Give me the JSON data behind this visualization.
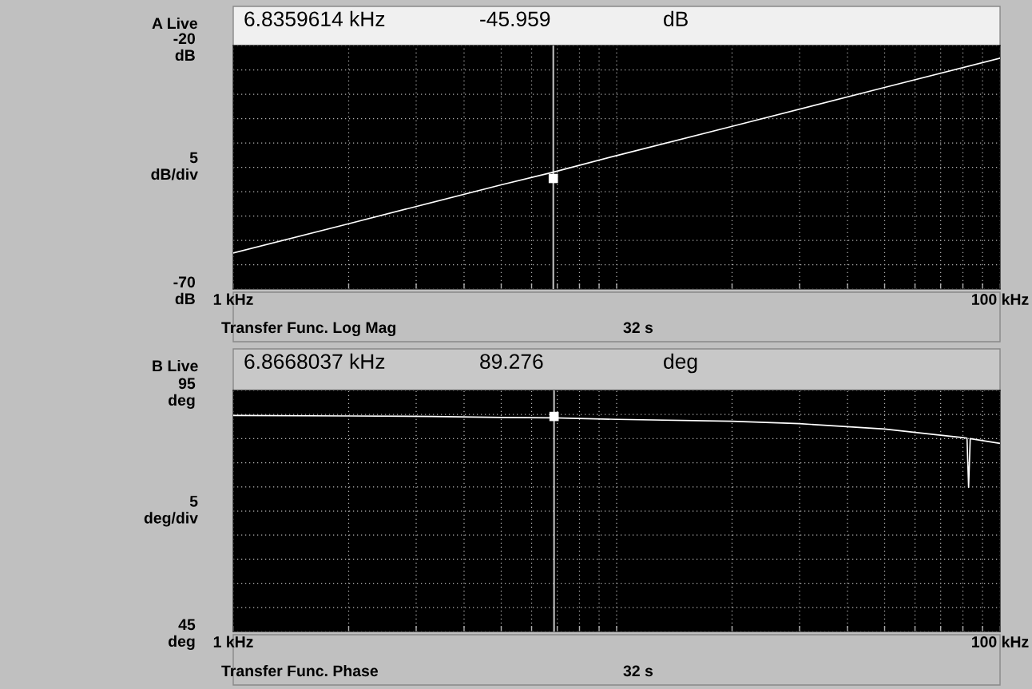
{
  "chart_data": [
    {
      "type": "line",
      "title": "A Live",
      "ylabel": "5\ndB/div",
      "xlim": [
        1,
        100
      ],
      "ylim": [
        -70,
        -20
      ],
      "log": "x",
      "grid": true,
      "marker": "none",
      "line_style": "solid",
      "xticks": [
        {
          "value": 1,
          "label": "1 kHz"
        },
        {
          "value": 2,
          "label": null
        },
        {
          "value": 3,
          "label": null
        },
        {
          "value": 4,
          "label": null
        },
        {
          "value": 5,
          "label": null
        },
        {
          "value": 6,
          "label": null
        },
        {
          "value": 7,
          "label": null
        },
        {
          "value": 8,
          "label": null
        },
        {
          "value": 9,
          "label": null
        },
        {
          "value": 10,
          "label": null
        },
        {
          "value": 20,
          "label": null
        },
        {
          "value": 30,
          "label": null
        },
        {
          "value": 40,
          "label": null
        },
        {
          "value": 50,
          "label": null
        },
        {
          "value": 60,
          "label": null
        },
        {
          "value": 70,
          "label": null
        },
        {
          "value": 80,
          "label": null
        },
        {
          "value": 90,
          "label": null
        },
        {
          "value": 100,
          "label": "100 kHz"
        }
      ],
      "yticks": [
        {
          "value": -20,
          "label": "-20\ndB"
        },
        {
          "value": -25,
          "label": null
        },
        {
          "value": -30,
          "label": null
        },
        {
          "value": -35,
          "label": null
        },
        {
          "value": -40,
          "label": null
        },
        {
          "value": -45,
          "label": null
        },
        {
          "value": -50,
          "label": null
        },
        {
          "value": -55,
          "label": null
        },
        {
          "value": -60,
          "label": null
        },
        {
          "value": -65,
          "label": null
        },
        {
          "value": -70,
          "label": "-70\ndB"
        }
      ],
      "series": [
        {
          "color": "#ffffff",
          "x": [
            1,
            2,
            5,
            6.8359614,
            10,
            20,
            50,
            100
          ],
          "values": [
            -62.6,
            -56.6,
            -48.6,
            -46.0,
            -42.6,
            -36.6,
            -28.6,
            -22.6
          ]
        },
        {
          "type": "scatter",
          "marker": "square",
          "color": "#ffffff",
          "x": [
            6.8359614
          ],
          "values": [
            -47.3
          ]
        }
      ],
      "ref_lines": [
        {
          "axis": "x",
          "value": 6.8359614,
          "color": "#c0c0c0"
        }
      ],
      "annotations": [
        "6.8359614 kHz",
        "-45.959",
        "dB",
        "Transfer Func. Log Mag",
        "32 s"
      ]
    },
    {
      "type": "line",
      "title": "B Live",
      "ylabel": "5\ndeg/div",
      "xlim": [
        1,
        100
      ],
      "ylim": [
        45,
        95
      ],
      "log": "x",
      "grid": true,
      "marker": "none",
      "line_style": "solid",
      "xticks": [
        {
          "value": 1,
          "label": "1 kHz"
        },
        {
          "value": 2,
          "label": null
        },
        {
          "value": 3,
          "label": null
        },
        {
          "value": 4,
          "label": null
        },
        {
          "value": 5,
          "label": null
        },
        {
          "value": 6,
          "label": null
        },
        {
          "value": 7,
          "label": null
        },
        {
          "value": 8,
          "label": null
        },
        {
          "value": 9,
          "label": null
        },
        {
          "value": 10,
          "label": null
        },
        {
          "value": 20,
          "label": null
        },
        {
          "value": 30,
          "label": null
        },
        {
          "value": 40,
          "label": null
        },
        {
          "value": 50,
          "label": null
        },
        {
          "value": 60,
          "label": null
        },
        {
          "value": 70,
          "label": null
        },
        {
          "value": 80,
          "label": null
        },
        {
          "value": 90,
          "label": null
        },
        {
          "value": 100,
          "label": "100 kHz"
        }
      ],
      "yticks": [
        {
          "value": 95,
          "label": "95\ndeg"
        },
        {
          "value": 90,
          "label": null
        },
        {
          "value": 85,
          "label": null
        },
        {
          "value": 80,
          "label": null
        },
        {
          "value": 75,
          "label": null
        },
        {
          "value": 70,
          "label": null
        },
        {
          "value": 65,
          "label": null
        },
        {
          "value": 60,
          "label": null
        },
        {
          "value": 55,
          "label": null
        },
        {
          "value": 50,
          "label": null
        },
        {
          "value": 45,
          "label": "45\ndeg"
        }
      ],
      "series": [
        {
          "color": "#ffffff",
          "x": [
            1,
            2,
            3.29,
            5,
            6.8668037,
            10,
            20,
            30,
            50,
            70,
            80,
            82,
            82.8,
            83.6,
            90,
            100
          ],
          "values": [
            89.8,
            89.7,
            89.6,
            89.4,
            89.3,
            89.0,
            88.6,
            88.1,
            87.0,
            85.7,
            85.2,
            85.1,
            74.9,
            85.0,
            84.6,
            84.0
          ]
        },
        {
          "type": "scatter",
          "marker": "square",
          "color": "#ffffff",
          "x": [
            6.8668037
          ],
          "values": [
            89.6
          ]
        }
      ],
      "ref_lines": [
        {
          "axis": "x",
          "value": 6.8668037,
          "color": "#c0c0c0"
        }
      ],
      "annotations": [
        "6.8668037 kHz",
        "89.276",
        "deg",
        "Transfer Func. Phase",
        "32 s"
      ]
    }
  ]
}
